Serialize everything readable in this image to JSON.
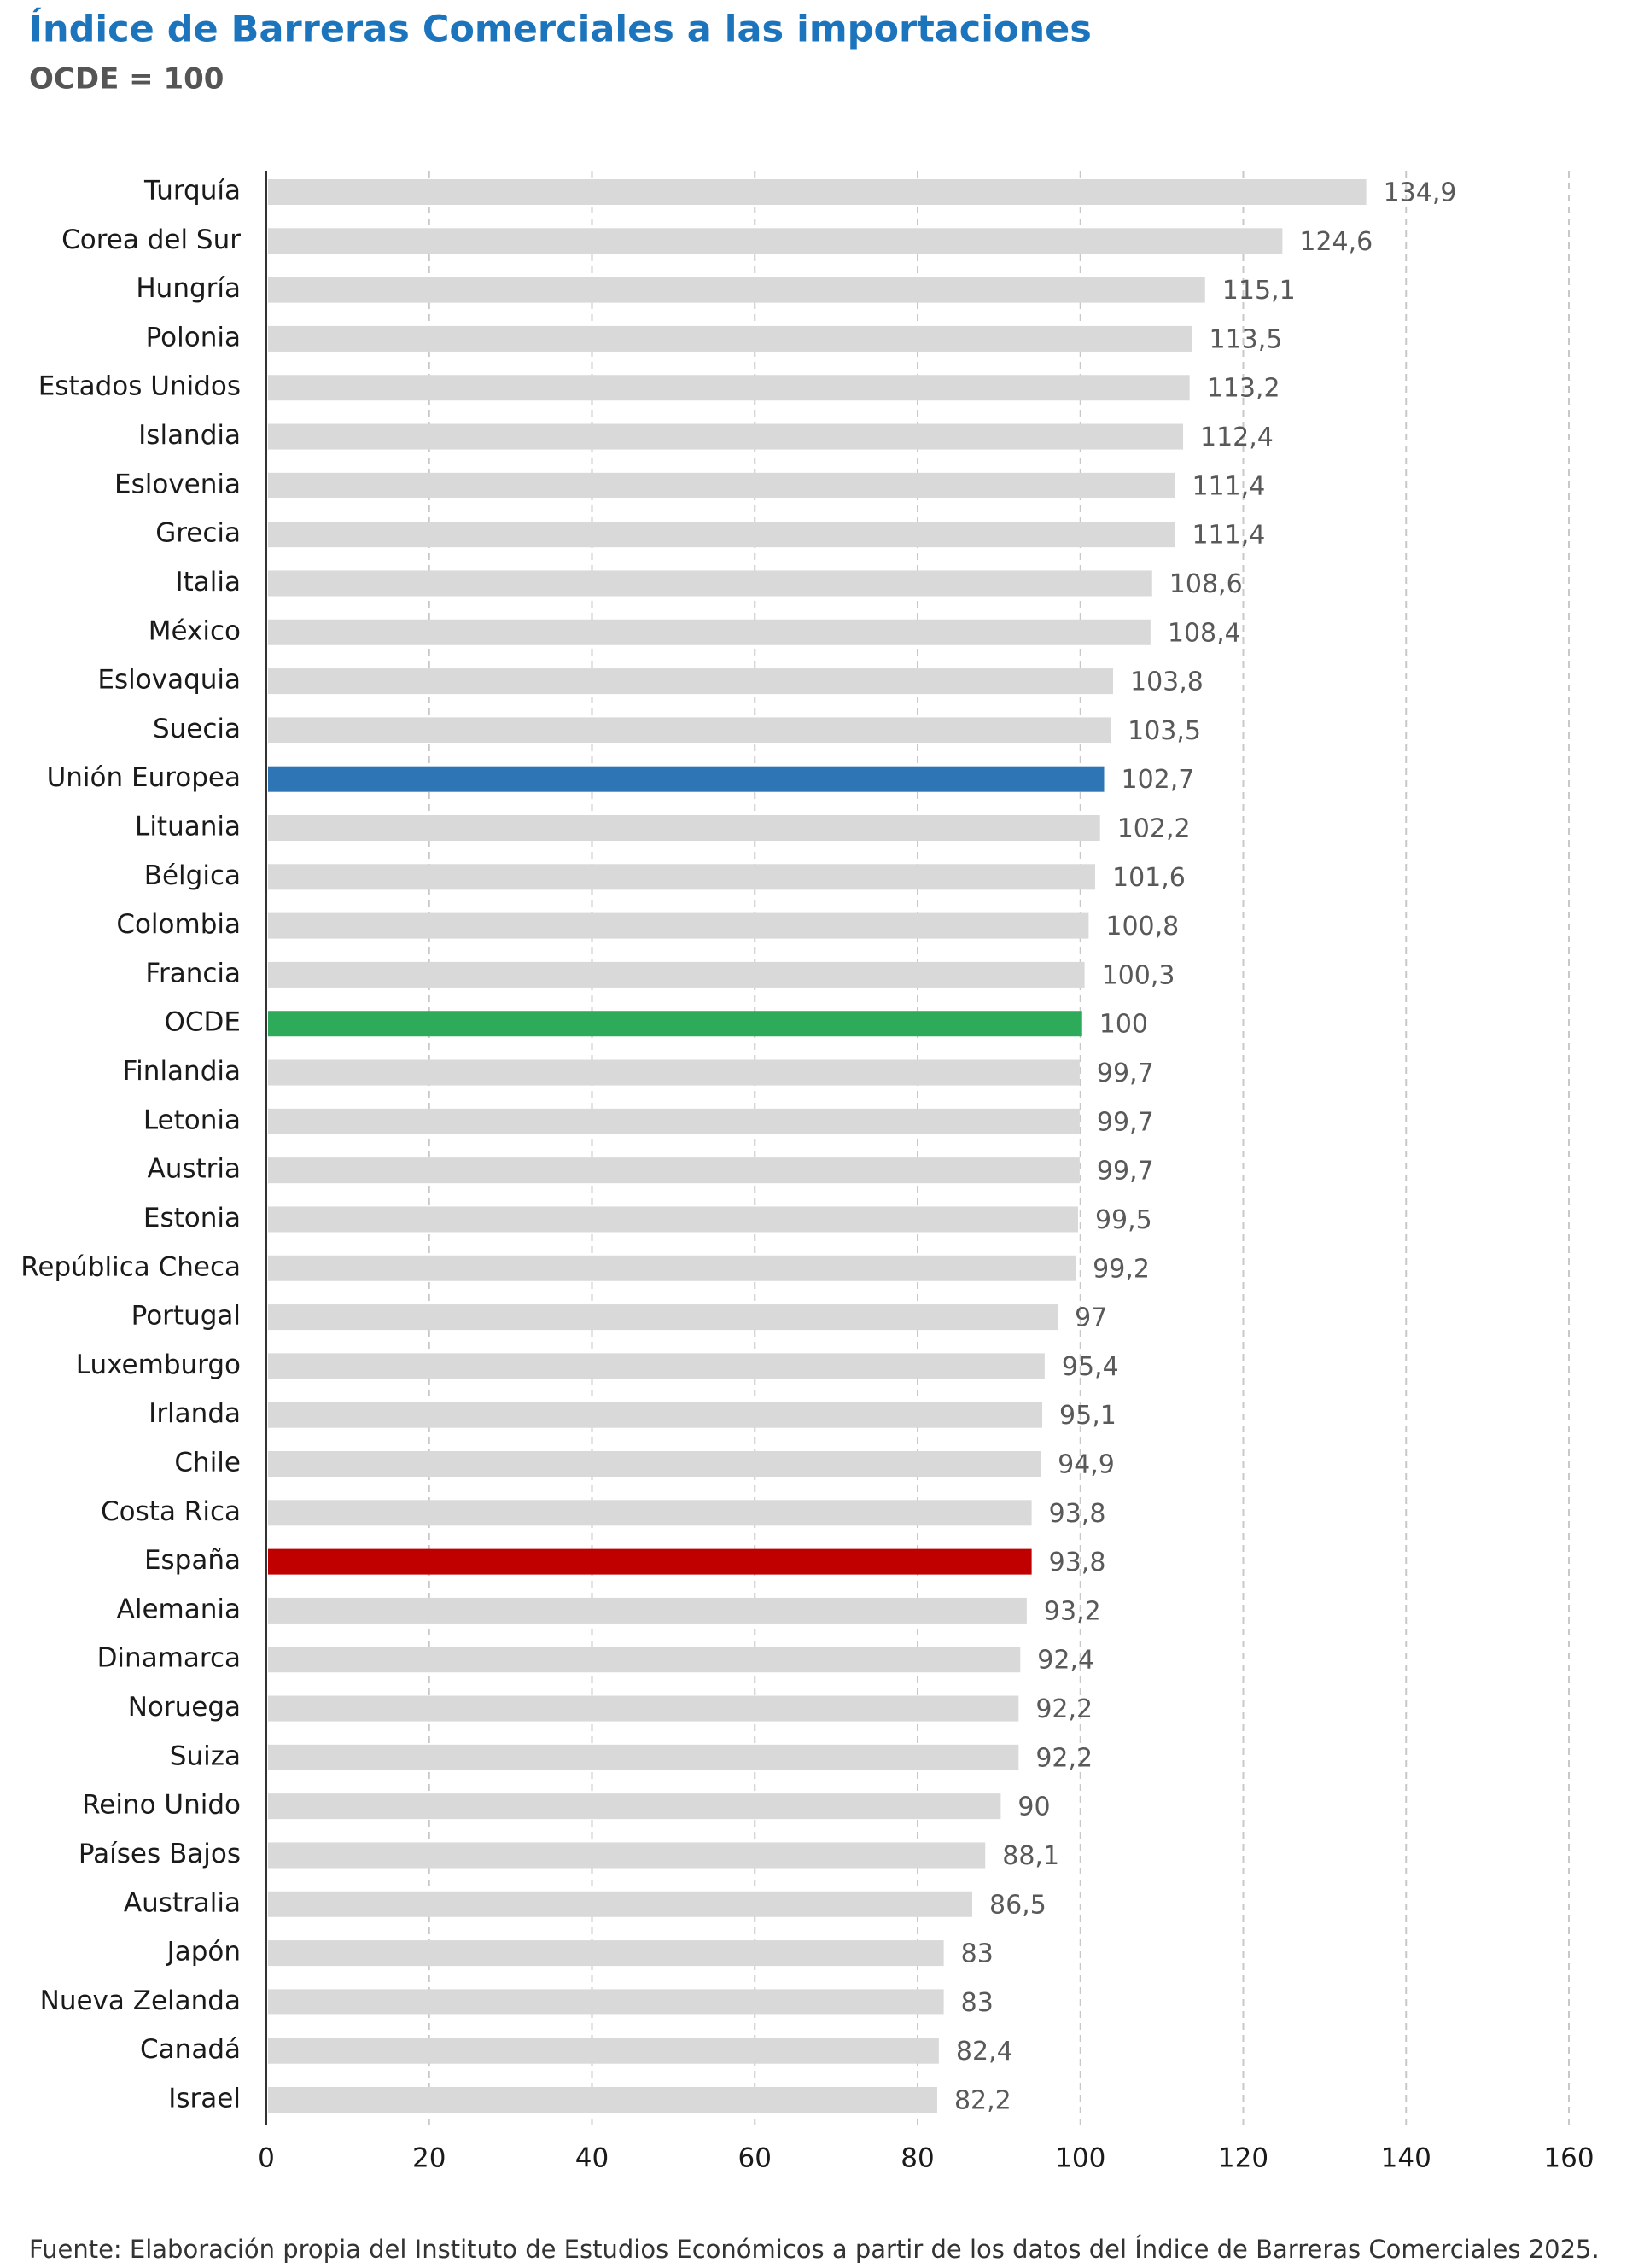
{
  "chart_data": {
    "type": "barh",
    "title": "Índice de Barreras Comerciales a las importaciones",
    "subtitle": "OCDE = 100",
    "categories": [
      "Turquía",
      "Corea del Sur",
      "Hungría",
      "Polonia",
      "Estados Unidos",
      "Islandia",
      "Eslovenia",
      "Grecia",
      "Italia",
      "México",
      "Eslovaquia",
      "Suecia",
      "Unión Europea",
      "Lituania",
      "Bélgica",
      "Colombia",
      "Francia",
      "OCDE",
      "Finlandia",
      "Letonia",
      "Austria",
      "Estonia",
      "República Checa",
      "Portugal",
      "Luxemburgo",
      "Irlanda",
      "Chile",
      "Costa Rica",
      "España",
      "Alemania",
      "Dinamarca",
      "Noruega",
      "Suiza",
      "Reino Unido",
      "Países Bajos",
      "Australia",
      "Japón",
      "Nueva Zelanda",
      "Canadá",
      "Israel"
    ],
    "values": [
      134.9,
      124.6,
      115.1,
      113.5,
      113.2,
      112.4,
      111.4,
      111.4,
      108.6,
      108.4,
      103.8,
      103.5,
      102.7,
      102.2,
      101.6,
      100.8,
      100.3,
      100,
      99.7,
      99.7,
      99.7,
      99.5,
      99.2,
      97,
      95.4,
      95.1,
      94.9,
      93.8,
      93.8,
      93.2,
      92.4,
      92.2,
      92.2,
      90,
      88.1,
      86.5,
      83,
      83,
      82.4,
      82.2
    ],
    "value_labels": [
      "134,9",
      "124,6",
      "115,1",
      "113,5",
      "113,2",
      "112,4",
      "111,4",
      "111,4",
      "108,6",
      "108,4",
      "103,8",
      "103,5",
      "102,7",
      "102,2",
      "101,6",
      "100,8",
      "100,3",
      "100",
      "99,7",
      "99,7",
      "99,7",
      "99,5",
      "99,2",
      "97",
      "95,4",
      "95,1",
      "94,9",
      "93,8",
      "93,8",
      "93,2",
      "92,4",
      "92,2",
      "92,2",
      "90",
      "88,1",
      "86,5",
      "83",
      "83",
      "82,4",
      "82,2"
    ],
    "colors": [
      "#d9d9d9",
      "#d9d9d9",
      "#d9d9d9",
      "#d9d9d9",
      "#d9d9d9",
      "#d9d9d9",
      "#d9d9d9",
      "#d9d9d9",
      "#d9d9d9",
      "#d9d9d9",
      "#d9d9d9",
      "#d9d9d9",
      "#2e75b6",
      "#d9d9d9",
      "#d9d9d9",
      "#d9d9d9",
      "#d9d9d9",
      "#2eab5a",
      "#d9d9d9",
      "#d9d9d9",
      "#d9d9d9",
      "#d9d9d9",
      "#d9d9d9",
      "#d9d9d9",
      "#d9d9d9",
      "#d9d9d9",
      "#d9d9d9",
      "#d9d9d9",
      "#c00000",
      "#d9d9d9",
      "#d9d9d9",
      "#d9d9d9",
      "#d9d9d9",
      "#d9d9d9",
      "#d9d9d9",
      "#d9d9d9",
      "#d9d9d9",
      "#d9d9d9",
      "#d9d9d9",
      "#d9d9d9"
    ],
    "xlim": [
      0,
      160
    ],
    "xticks": [
      0,
      20,
      40,
      60,
      80,
      100,
      120,
      140,
      160
    ],
    "grid": true,
    "source": "Fuente: Elaboración propia del Instituto de Estudios Económicos a partir de los datos del Índice de Barreras Comerciales 2025."
  }
}
